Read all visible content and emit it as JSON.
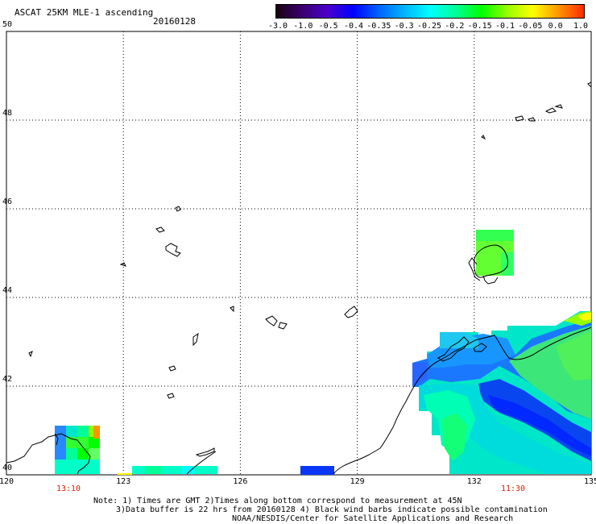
{
  "header": {
    "title": "ASCAT 25KM MLE-1 ascending",
    "date": "20160128"
  },
  "colorbar": {
    "labels": [
      "-3.0",
      "-1.0",
      "-0.5",
      "-0.4",
      "-0.35",
      "-0.3",
      "-0.25",
      "-0.2",
      "-0.15",
      "-0.1",
      "-0.05",
      "0.0",
      "1.0"
    ],
    "colors": [
      "#1a0010",
      "#3a0070",
      "#4b00cc",
      "#0000ff",
      "#0064ff",
      "#00b4ff",
      "#00ffff",
      "#00ff96",
      "#00ff00",
      "#96ff00",
      "#ffff00",
      "#ff9600",
      "#ff2800"
    ]
  },
  "map": {
    "lat_labels": [
      "50",
      "48",
      "46",
      "44",
      "42",
      "40"
    ],
    "lon_labels": [
      "120",
      "123",
      "126",
      "129",
      "132",
      "135"
    ],
    "time_labels": [
      "13:10",
      "11:30"
    ],
    "lat_range": [
      40,
      50
    ],
    "lon_range": [
      120,
      135
    ],
    "grid": true,
    "grid_style": "dotted",
    "colors": {
      "coastline": "#000000",
      "time_label": "#cc2200",
      "low_value": "#0a37f5",
      "mid_value": "#00ff96",
      "high_value": "#00ff00"
    }
  },
  "notes": {
    "line1": "Note: 1) Times are GMT 2)Times along bottom correspond to measurement at 45N",
    "line2": "3)Data buffer is 22 hrs from 20160128 4) Black wind barbs indicate possible contamination",
    "line3": "NOAA/NESDIS/Center for Satellite Applications and Research"
  }
}
